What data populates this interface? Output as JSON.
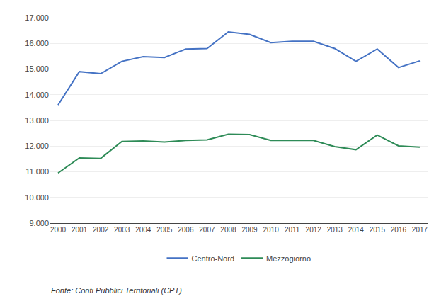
{
  "chart_data": {
    "type": "line",
    "x": [
      2000,
      2001,
      2002,
      2003,
      2004,
      2005,
      2006,
      2007,
      2008,
      2009,
      2010,
      2011,
      2012,
      2013,
      2014,
      2015,
      2016,
      2017
    ],
    "series": [
      {
        "name": "Centro-Nord",
        "color": "#4472C4",
        "values": [
          13600,
          14900,
          14820,
          15300,
          15480,
          15450,
          15780,
          15800,
          16450,
          16350,
          16030,
          16080,
          16080,
          15800,
          15300,
          15780,
          15060,
          15320
        ]
      },
      {
        "name": "Mezzogiorno",
        "color": "#2E8B57",
        "values": [
          10950,
          11540,
          11520,
          12180,
          12200,
          12160,
          12220,
          12240,
          12460,
          12450,
          12220,
          12220,
          12220,
          11980,
          11860,
          12430,
          12010,
          11960
        ]
      }
    ],
    "xlim": [
      1999.6,
      2017.4
    ],
    "xticks": [
      2000,
      2001,
      2002,
      2003,
      2004,
      2005,
      2006,
      2007,
      2008,
      2009,
      2010,
      2011,
      2012,
      2013,
      2014,
      2015,
      2016,
      2017
    ],
    "ylim": [
      9000,
      17000
    ],
    "yticks": [
      {
        "value": 9000,
        "label": "9.000"
      },
      {
        "value": 10000,
        "label": "10.000"
      },
      {
        "value": 11000,
        "label": "11.000"
      },
      {
        "value": 12000,
        "label": "12.000"
      },
      {
        "value": 13000,
        "label": "13.000"
      },
      {
        "value": 14000,
        "label": "14.000"
      },
      {
        "value": 15000,
        "label": "15.000"
      },
      {
        "value": 16000,
        "label": "16.000"
      },
      {
        "value": 17000,
        "label": "17.000"
      }
    ],
    "grid": "y",
    "legend": "bottom",
    "annotations": [
      "Fonte: Conti Pubblici Territoriali (CPT)"
    ]
  }
}
